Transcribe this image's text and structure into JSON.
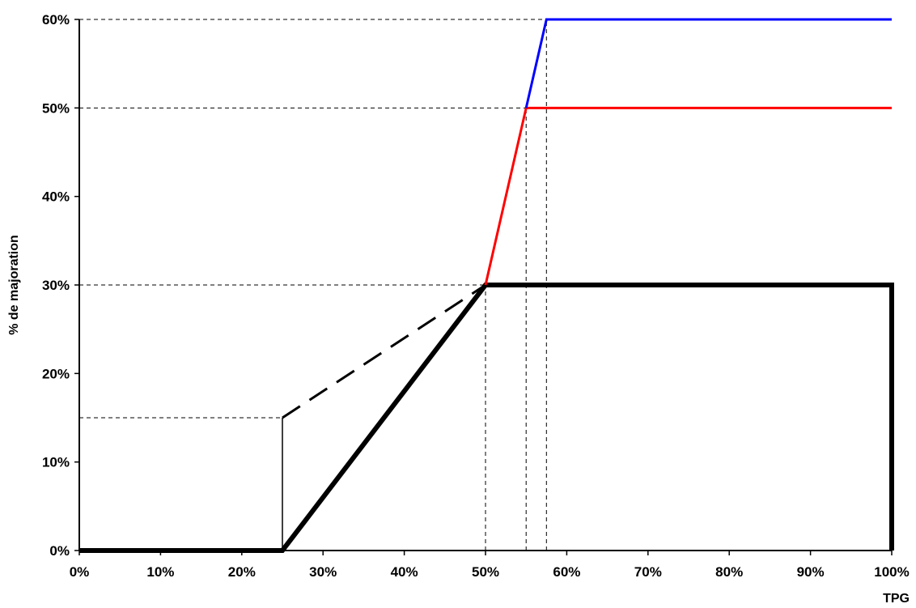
{
  "chart_data": {
    "type": "line",
    "xlabel": "TPG",
    "ylabel": "% de majoration",
    "xlim": [
      0,
      100
    ],
    "ylim": [
      0,
      60
    ],
    "x_ticks": [
      "0%",
      "10%",
      "20%",
      "30%",
      "40%",
      "50%",
      "60%",
      "70%",
      "80%",
      "90%",
      "100%"
    ],
    "y_ticks": [
      "0%",
      "10%",
      "20%",
      "30%",
      "40%",
      "50%",
      "60%"
    ],
    "grid": false,
    "legend": "none",
    "series": [
      {
        "style": "solid-thick",
        "color": "#000000",
        "points": [
          [
            0,
            0
          ],
          [
            25,
            0
          ],
          [
            50,
            30
          ],
          [
            100,
            30
          ],
          [
            100,
            0
          ]
        ]
      },
      {
        "style": "dashed-thick",
        "color": "#000000",
        "points": [
          [
            25,
            15
          ],
          [
            50,
            30
          ]
        ]
      },
      {
        "style": "solid-thin",
        "color": "#000000",
        "points": [
          [
            25,
            0
          ],
          [
            25,
            15
          ]
        ]
      },
      {
        "style": "solid",
        "color": "#ff0000",
        "points": [
          [
            50,
            30
          ],
          [
            55,
            50
          ],
          [
            100,
            50
          ]
        ]
      },
      {
        "style": "solid",
        "color": "#0000ff",
        "points": [
          [
            55,
            50
          ],
          [
            57.5,
            60
          ],
          [
            100,
            60
          ]
        ]
      }
    ],
    "reference_lines": [
      {
        "points": [
          [
            0,
            60
          ],
          [
            57.5,
            60
          ]
        ]
      },
      {
        "points": [
          [
            0,
            50
          ],
          [
            55,
            50
          ]
        ]
      },
      {
        "points": [
          [
            0,
            30
          ],
          [
            50,
            30
          ]
        ]
      },
      {
        "points": [
          [
            0,
            15
          ],
          [
            25,
            15
          ]
        ]
      },
      {
        "points": [
          [
            50,
            0
          ],
          [
            50,
            30
          ]
        ]
      },
      {
        "points": [
          [
            55,
            0
          ],
          [
            55,
            50
          ]
        ]
      },
      {
        "points": [
          [
            57.5,
            0
          ],
          [
            57.5,
            60
          ]
        ]
      }
    ]
  }
}
